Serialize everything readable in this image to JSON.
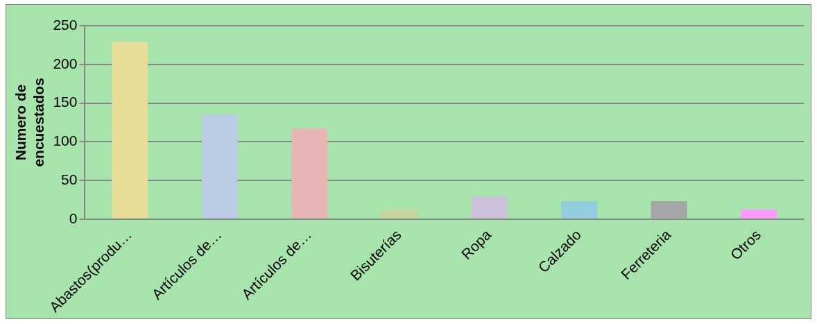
{
  "chart_data": {
    "type": "bar",
    "ylabel": "Numero de encuestados",
    "categories": [
      "Abastos(produ…",
      "Artículos de…",
      "Artículos de…",
      "Bisuterías",
      "Ropa",
      "Calzado",
      "Ferreteria",
      "Otros"
    ],
    "values": [
      229,
      135,
      117,
      12,
      29,
      23,
      23,
      12
    ],
    "colors": [
      "#e8dd97",
      "#b9cce4",
      "#e6b5b4",
      "#c5d59c",
      "#ccc0da",
      "#93cddd",
      "#a6a6a6",
      "#ff99ff"
    ],
    "ylim": [
      0,
      250
    ],
    "yticks": [
      0,
      50,
      100,
      150,
      200,
      250
    ],
    "grid": "y",
    "legend": false
  }
}
